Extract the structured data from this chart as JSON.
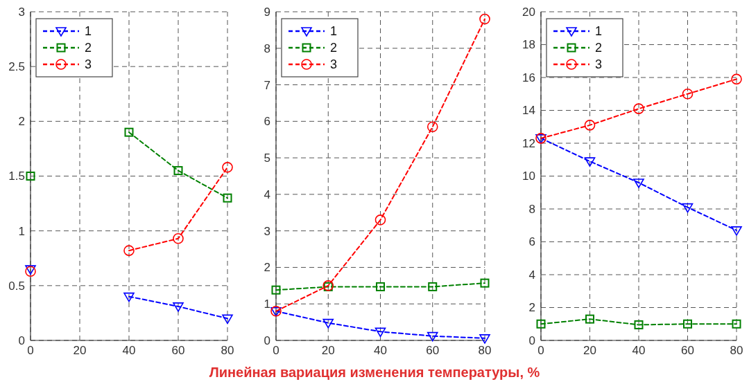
{
  "chart_data": [
    {
      "type": "line",
      "x": [
        0,
        20,
        40,
        60,
        80
      ],
      "xlim": [
        0,
        80
      ],
      "xticks": [
        0,
        20,
        40,
        60,
        80
      ],
      "ylim": [
        0,
        3
      ],
      "yticks": [
        0,
        0.5,
        1,
        1.5,
        2,
        2.5,
        3
      ],
      "grid": true,
      "legend": "top left",
      "line_style": "dashed",
      "series": [
        {
          "name": "1",
          "color": "#0000ff",
          "marker": "triangle",
          "values": [
            0.65,
            null,
            0.4,
            0.31,
            0.2
          ]
        },
        {
          "name": "2",
          "color": "#008000",
          "marker": "square",
          "values": [
            1.5,
            null,
            1.9,
            1.55,
            1.3
          ]
        },
        {
          "name": "3",
          "color": "#ff0000",
          "marker": "circle",
          "values": [
            0.63,
            null,
            0.82,
            0.93,
            1.58
          ]
        }
      ]
    },
    {
      "type": "line",
      "xlabel": "Линейная вариация изменения температуры, %",
      "x": [
        0,
        20,
        40,
        60,
        80
      ],
      "xlim": [
        0,
        80
      ],
      "xticks": [
        0,
        20,
        40,
        60,
        80
      ],
      "ylim": [
        0,
        9
      ],
      "yticks": [
        0,
        1,
        2,
        3,
        4,
        5,
        6,
        7,
        8,
        9
      ],
      "grid": true,
      "legend": "top left",
      "line_style": "dashed",
      "series": [
        {
          "name": "1",
          "color": "#0000ff",
          "marker": "triangle",
          "values": [
            0.8,
            0.48,
            0.24,
            0.12,
            0.06
          ]
        },
        {
          "name": "2",
          "color": "#008000",
          "marker": "square",
          "values": [
            1.38,
            1.47,
            1.47,
            1.47,
            1.57
          ]
        },
        {
          "name": "3",
          "color": "#ff0000",
          "marker": "circle",
          "values": [
            0.8,
            1.5,
            3.3,
            5.85,
            8.8
          ]
        }
      ]
    },
    {
      "type": "line",
      "x": [
        0,
        20,
        40,
        60,
        80
      ],
      "xlim": [
        0,
        80
      ],
      "xticks": [
        0,
        20,
        40,
        60,
        80
      ],
      "ylim": [
        0,
        20
      ],
      "yticks": [
        0,
        2,
        4,
        6,
        8,
        10,
        12,
        14,
        16,
        18,
        20
      ],
      "grid": true,
      "legend": "top left",
      "line_style": "dashed",
      "series": [
        {
          "name": "1",
          "color": "#0000ff",
          "marker": "triangle",
          "values": [
            12.3,
            10.9,
            9.6,
            8.1,
            6.7
          ]
        },
        {
          "name": "2",
          "color": "#008000",
          "marker": "square",
          "values": [
            1.0,
            1.3,
            0.95,
            1.0,
            1.0
          ]
        },
        {
          "name": "3",
          "color": "#ff0000",
          "marker": "circle",
          "values": [
            12.3,
            13.1,
            14.1,
            15.0,
            15.9
          ]
        }
      ]
    }
  ]
}
